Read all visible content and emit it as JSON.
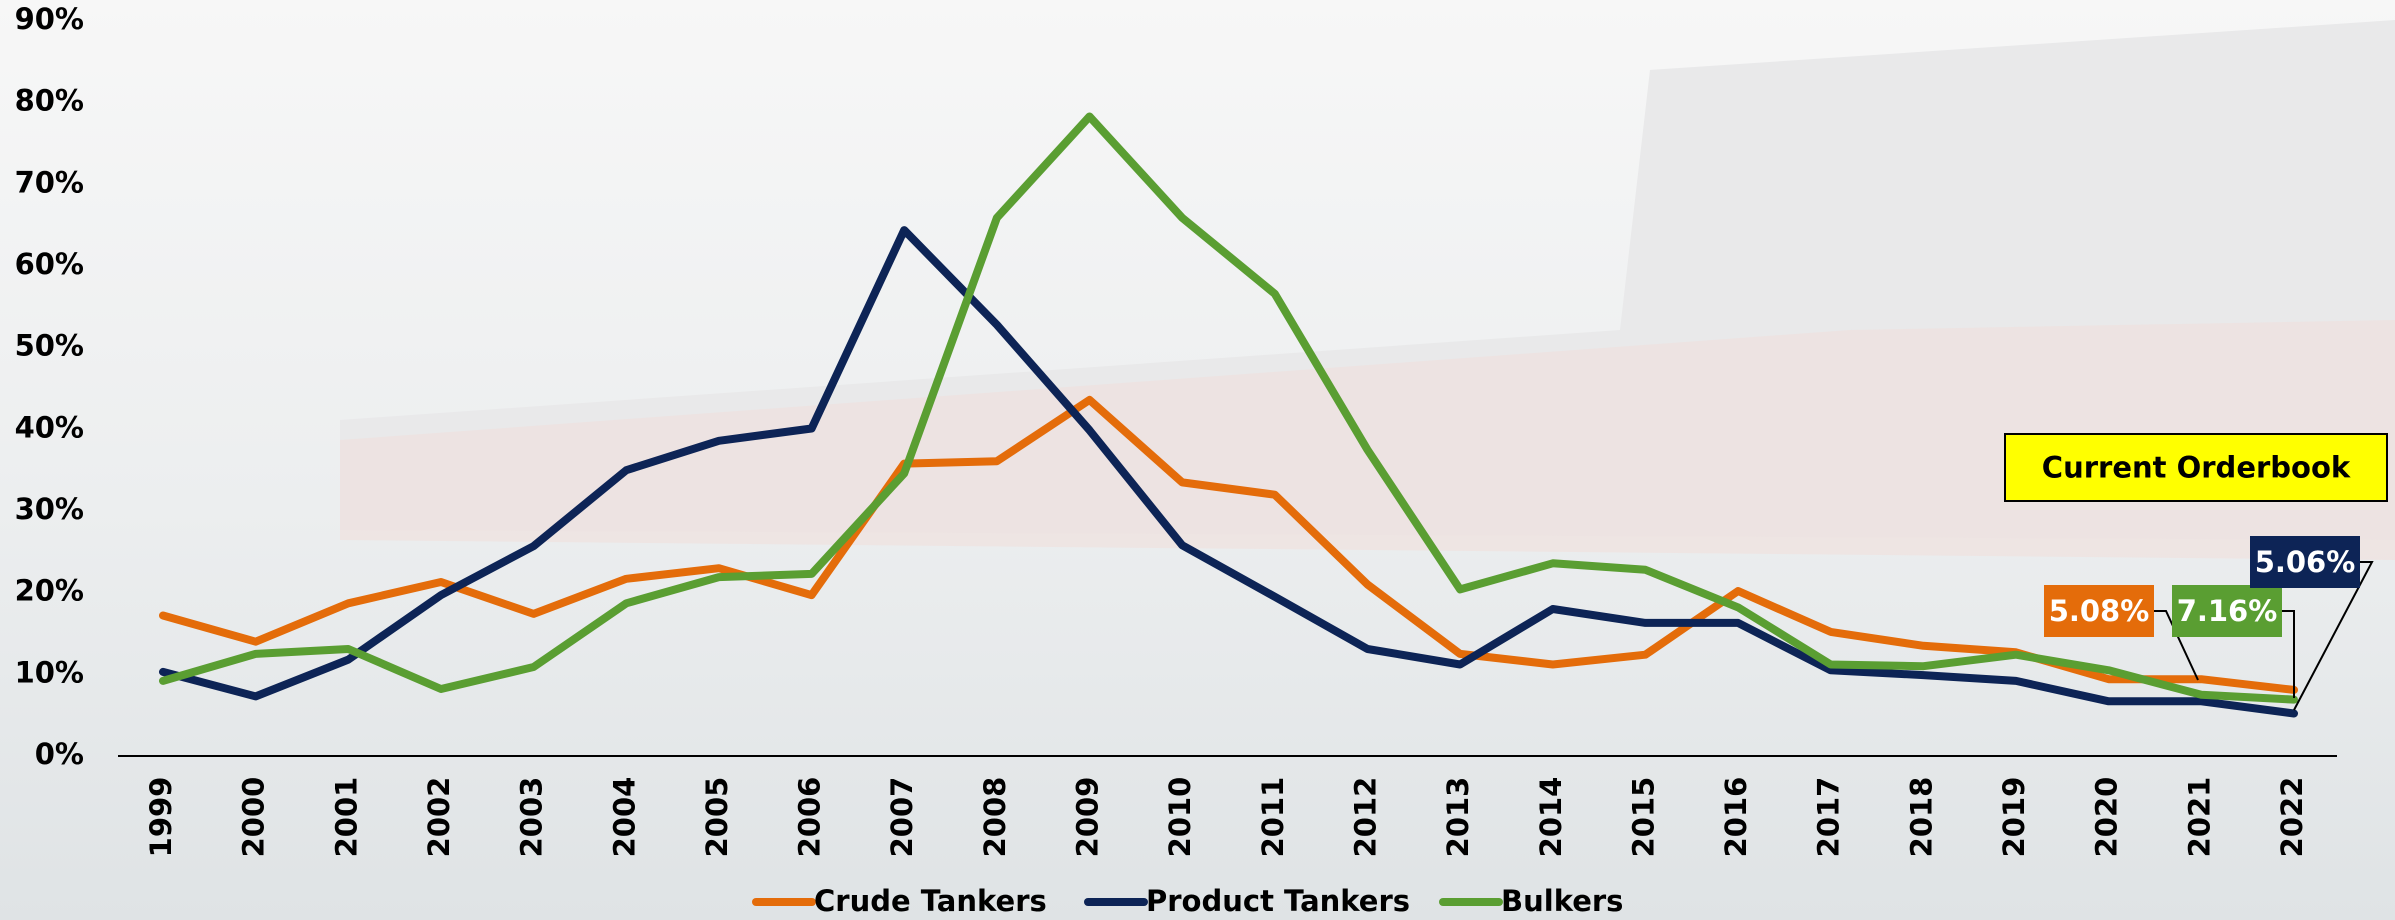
{
  "chart_data": {
    "type": "line",
    "categories": [
      "1999",
      "2000",
      "2001",
      "2002",
      "2003",
      "2004",
      "2005",
      "2006",
      "2007",
      "2008",
      "2009",
      "2010",
      "2011",
      "2012",
      "2013",
      "2014",
      "2015",
      "2016",
      "2017",
      "2018",
      "2019",
      "2020",
      "2021",
      "2022"
    ],
    "series": [
      {
        "name": "Crude Tankers",
        "color": "#e46c0a",
        "values": [
          17.2,
          14.0,
          18.7,
          21.3,
          17.4,
          21.7,
          23.0,
          19.7,
          35.8,
          36.1,
          43.6,
          33.5,
          32.0,
          21.0,
          12.5,
          11.2,
          12.4,
          20.2,
          15.2,
          13.5,
          12.7,
          9.4,
          9.4,
          8.1
        ]
      },
      {
        "name": "Product Tankers",
        "color": "#0d2456",
        "values": [
          10.3,
          7.3,
          11.8,
          19.7,
          25.7,
          35.0,
          38.6,
          40.1,
          64.4,
          52.8,
          39.9,
          25.8,
          19.5,
          13.1,
          11.2,
          18.0,
          16.3,
          16.3,
          10.5,
          9.9,
          9.2,
          6.7,
          6.7,
          5.2
        ]
      },
      {
        "name": "Bulkers",
        "color": "#5a9e32",
        "values": [
          9.2,
          12.5,
          13.1,
          8.2,
          10.9,
          18.7,
          21.9,
          22.3,
          34.6,
          65.9,
          78.3,
          65.9,
          56.6,
          37.5,
          20.4,
          23.6,
          22.8,
          18.2,
          11.2,
          11.0,
          12.4,
          10.5,
          7.5,
          6.9
        ]
      }
    ],
    "ylim": [
      0,
      90
    ],
    "yticks": [
      {
        "value": 0,
        "label": "0%"
      },
      {
        "value": 10,
        "label": "10%"
      },
      {
        "value": 20,
        "label": "20%"
      },
      {
        "value": 30,
        "label": "30%"
      },
      {
        "value": 40,
        "label": "40%"
      },
      {
        "value": 50,
        "label": "50%"
      },
      {
        "value": 60,
        "label": "60%"
      },
      {
        "value": 70,
        "label": "70%"
      },
      {
        "value": 80,
        "label": "80%"
      },
      {
        "value": 90,
        "label": "90%"
      }
    ],
    "grid": false,
    "legend": "bottom",
    "annotations": [
      {
        "text": "Current Orderbook",
        "background": "#ffff00",
        "color": "#000000"
      },
      {
        "text": "5.08%",
        "background": "#e46c0a",
        "color": "#ffffff"
      },
      {
        "text": "7.16%",
        "background": "#5a9e32",
        "color": "#ffffff"
      },
      {
        "text": "5.06%",
        "background": "#0d2456",
        "color": "#ffffff"
      }
    ]
  }
}
